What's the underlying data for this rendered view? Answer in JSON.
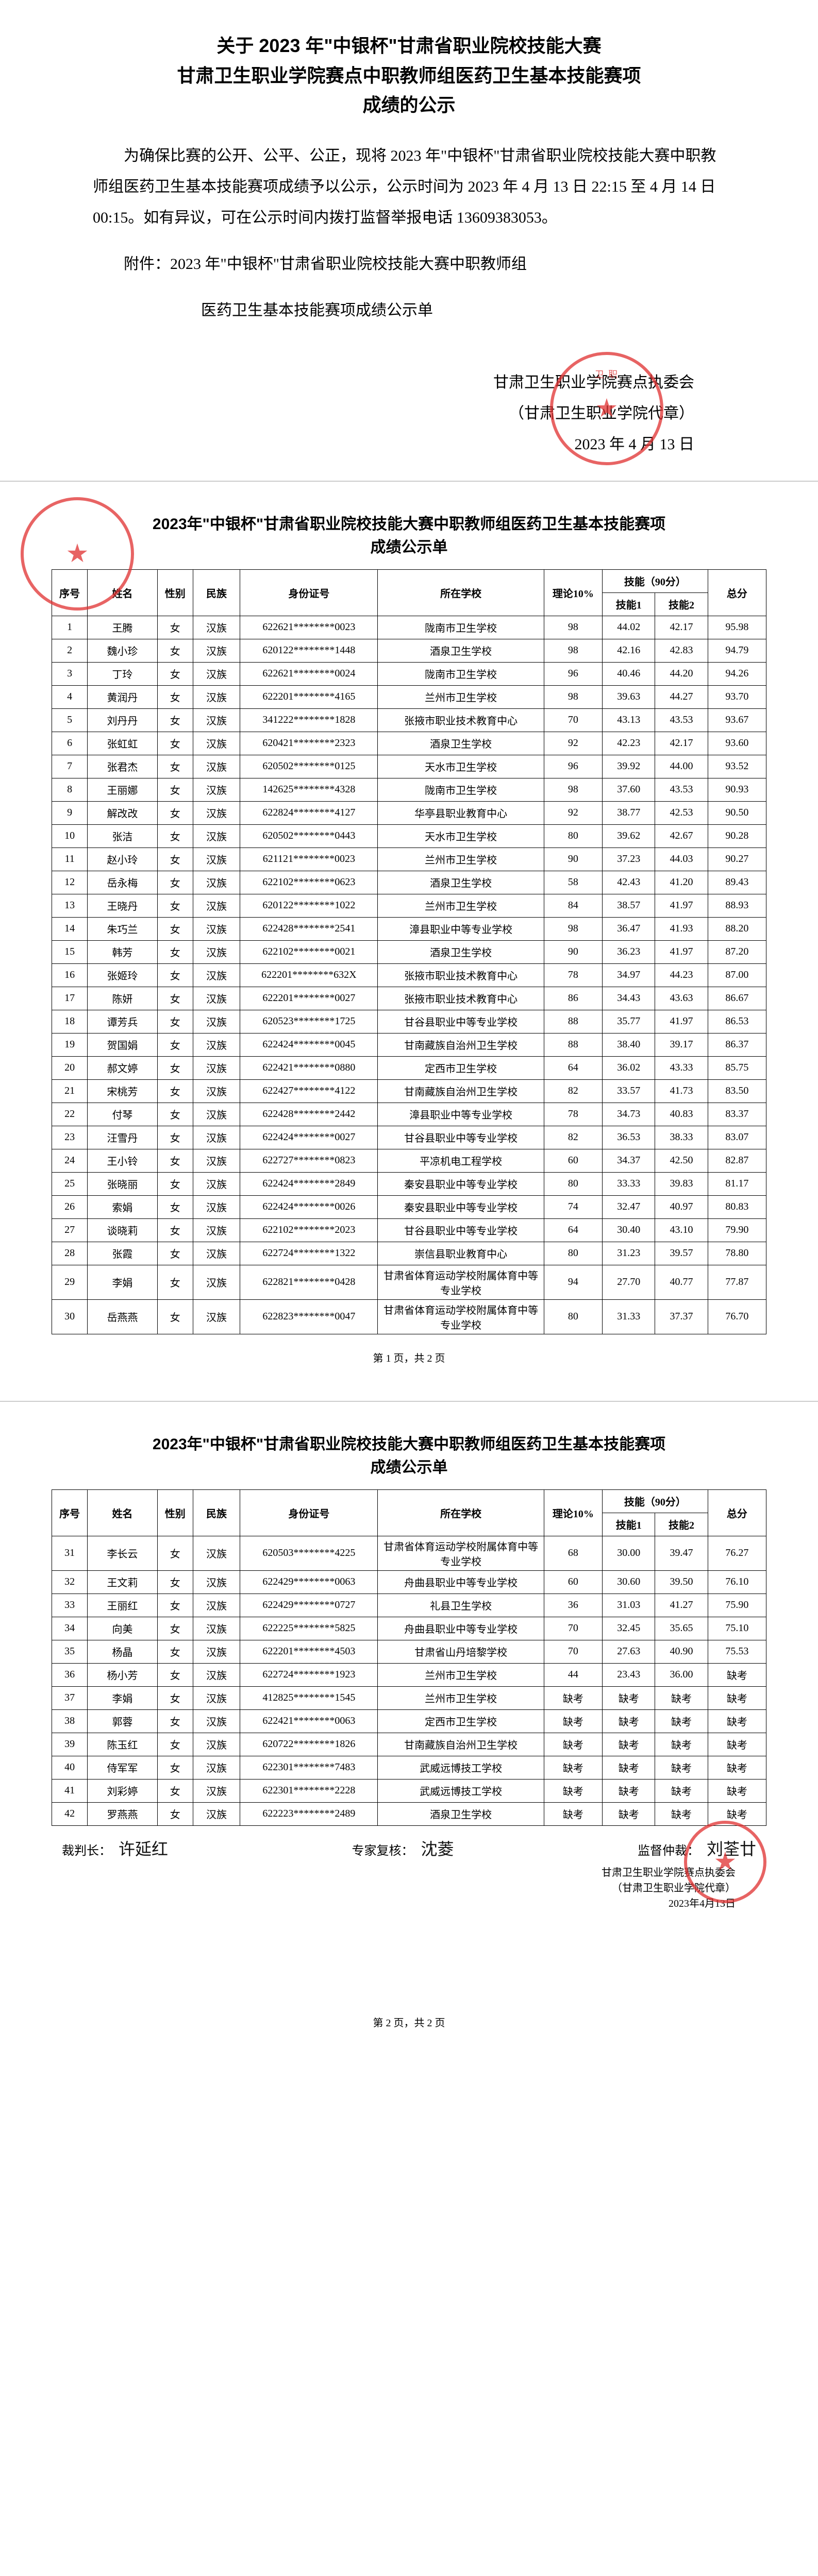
{
  "notice": {
    "title_line1": "关于 2023 年\"中银杯\"甘肃省职业院校技能大赛",
    "title_line2": "甘肃卫生职业学院赛点中职教师组医药卫生基本技能赛项",
    "title_line3": "成绩的公示",
    "para1": "为确保比赛的公开、公平、公正，现将 2023 年\"中银杯\"甘肃省职业院校技能大赛中职教师组医药卫生基本技能赛项成绩予以公示，公示时间为 2023 年 4 月 13 日 22:15 至 4 月 14 日 00:15。如有异议，可在公示时间内拨打监督举报电话 13609383053。",
    "attach_label": "附件：2023 年\"中银杯\"甘肃省职业院校技能大赛中职教师组",
    "attach_cont": "医药卫生基本技能赛项成绩公示单",
    "sig_org": "甘肃卫生职业学院赛点执委会",
    "sig_proxy": "（甘肃卫生职业学院代章）",
    "sig_date": "2023 年 4 月 13 日"
  },
  "table_meta": {
    "sub_title_line1": "2023年\"中银杯\"甘肃省职业院校技能大赛中职教师组医药卫生基本技能赛项",
    "sub_title_line2": "成绩公示单",
    "h_seq": "序号",
    "h_name": "姓名",
    "h_sex": "性别",
    "h_eth": "民族",
    "h_id": "身份证号",
    "h_school": "所在学校",
    "h_theory": "理论10%",
    "h_skill_group": "技能（90分）",
    "h_sk1": "技能1",
    "h_sk2": "技能2",
    "h_total": "总分",
    "page1_footer": "第 1 页，共 2 页",
    "page2_footer": "第 2 页，共 2 页",
    "sign_judge_label": "裁判长：",
    "sign_judge_val": "许延红",
    "sign_expert_label": "专家复核：",
    "sign_expert_val": "沈菱",
    "sign_super_label": "监督仲裁：",
    "sign_super_val": "刘荃廿",
    "stamp_org": "甘肃卫生职业学院赛点执委会",
    "stamp_proxy": "（甘肃卫生职业学院代章）",
    "stamp_date": "2023年4月13日"
  },
  "rows_p1": [
    {
      "seq": "1",
      "name": "王腾",
      "sex": "女",
      "eth": "汉族",
      "id": "622621********0023",
      "school": "陇南市卫生学校",
      "theory": "98",
      "sk1": "44.02",
      "sk2": "42.17",
      "total": "95.98"
    },
    {
      "seq": "2",
      "name": "魏小珍",
      "sex": "女",
      "eth": "汉族",
      "id": "620122********1448",
      "school": "酒泉卫生学校",
      "theory": "98",
      "sk1": "42.16",
      "sk2": "42.83",
      "total": "94.79"
    },
    {
      "seq": "3",
      "name": "丁玲",
      "sex": "女",
      "eth": "汉族",
      "id": "622621********0024",
      "school": "陇南市卫生学校",
      "theory": "96",
      "sk1": "40.46",
      "sk2": "44.20",
      "total": "94.26"
    },
    {
      "seq": "4",
      "name": "黄润丹",
      "sex": "女",
      "eth": "汉族",
      "id": "622201********4165",
      "school": "兰州市卫生学校",
      "theory": "98",
      "sk1": "39.63",
      "sk2": "44.27",
      "total": "93.70"
    },
    {
      "seq": "5",
      "name": "刘丹丹",
      "sex": "女",
      "eth": "汉族",
      "id": "341222********1828",
      "school": "张掖市职业技术教育中心",
      "theory": "70",
      "sk1": "43.13",
      "sk2": "43.53",
      "total": "93.67"
    },
    {
      "seq": "6",
      "name": "张虹虹",
      "sex": "女",
      "eth": "汉族",
      "id": "620421********2323",
      "school": "酒泉卫生学校",
      "theory": "92",
      "sk1": "42.23",
      "sk2": "42.17",
      "total": "93.60"
    },
    {
      "seq": "7",
      "name": "张君杰",
      "sex": "女",
      "eth": "汉族",
      "id": "620502********0125",
      "school": "天水市卫生学校",
      "theory": "96",
      "sk1": "39.92",
      "sk2": "44.00",
      "total": "93.52"
    },
    {
      "seq": "8",
      "name": "王丽娜",
      "sex": "女",
      "eth": "汉族",
      "id": "142625********4328",
      "school": "陇南市卫生学校",
      "theory": "98",
      "sk1": "37.60",
      "sk2": "43.53",
      "total": "90.93"
    },
    {
      "seq": "9",
      "name": "解改改",
      "sex": "女",
      "eth": "汉族",
      "id": "622824********4127",
      "school": "华亭县职业教育中心",
      "theory": "92",
      "sk1": "38.77",
      "sk2": "42.53",
      "total": "90.50"
    },
    {
      "seq": "10",
      "name": "张洁",
      "sex": "女",
      "eth": "汉族",
      "id": "620502********0443",
      "school": "天水市卫生学校",
      "theory": "80",
      "sk1": "39.62",
      "sk2": "42.67",
      "total": "90.28"
    },
    {
      "seq": "11",
      "name": "赵小玲",
      "sex": "女",
      "eth": "汉族",
      "id": "621121********0023",
      "school": "兰州市卫生学校",
      "theory": "90",
      "sk1": "37.23",
      "sk2": "44.03",
      "total": "90.27"
    },
    {
      "seq": "12",
      "name": "岳永梅",
      "sex": "女",
      "eth": "汉族",
      "id": "622102********0623",
      "school": "酒泉卫生学校",
      "theory": "58",
      "sk1": "42.43",
      "sk2": "41.20",
      "total": "89.43"
    },
    {
      "seq": "13",
      "name": "王晓丹",
      "sex": "女",
      "eth": "汉族",
      "id": "620122********1022",
      "school": "兰州市卫生学校",
      "theory": "84",
      "sk1": "38.57",
      "sk2": "41.97",
      "total": "88.93"
    },
    {
      "seq": "14",
      "name": "朱巧兰",
      "sex": "女",
      "eth": "汉族",
      "id": "622428********2541",
      "school": "漳县职业中等专业学校",
      "theory": "98",
      "sk1": "36.47",
      "sk2": "41.93",
      "total": "88.20"
    },
    {
      "seq": "15",
      "name": "韩芳",
      "sex": "女",
      "eth": "汉族",
      "id": "622102********0021",
      "school": "酒泉卫生学校",
      "theory": "90",
      "sk1": "36.23",
      "sk2": "41.97",
      "total": "87.20"
    },
    {
      "seq": "16",
      "name": "张姬玲",
      "sex": "女",
      "eth": "汉族",
      "id": "622201********632X",
      "school": "张掖市职业技术教育中心",
      "theory": "78",
      "sk1": "34.97",
      "sk2": "44.23",
      "total": "87.00"
    },
    {
      "seq": "17",
      "name": "陈妍",
      "sex": "女",
      "eth": "汉族",
      "id": "622201********0027",
      "school": "张掖市职业技术教育中心",
      "theory": "86",
      "sk1": "34.43",
      "sk2": "43.63",
      "total": "86.67"
    },
    {
      "seq": "18",
      "name": "谭芳兵",
      "sex": "女",
      "eth": "汉族",
      "id": "620523********1725",
      "school": "甘谷县职业中等专业学校",
      "theory": "88",
      "sk1": "35.77",
      "sk2": "41.97",
      "total": "86.53"
    },
    {
      "seq": "19",
      "name": "贺国娟",
      "sex": "女",
      "eth": "汉族",
      "id": "622424********0045",
      "school": "甘南藏族自治州卫生学校",
      "theory": "88",
      "sk1": "38.40",
      "sk2": "39.17",
      "total": "86.37"
    },
    {
      "seq": "20",
      "name": "郝文婷",
      "sex": "女",
      "eth": "汉族",
      "id": "622421********0880",
      "school": "定西市卫生学校",
      "theory": "64",
      "sk1": "36.02",
      "sk2": "43.33",
      "total": "85.75"
    },
    {
      "seq": "21",
      "name": "宋桃芳",
      "sex": "女",
      "eth": "汉族",
      "id": "622427********4122",
      "school": "甘南藏族自治州卫生学校",
      "theory": "82",
      "sk1": "33.57",
      "sk2": "41.73",
      "total": "83.50"
    },
    {
      "seq": "22",
      "name": "付琴",
      "sex": "女",
      "eth": "汉族",
      "id": "622428********2442",
      "school": "漳县职业中等专业学校",
      "theory": "78",
      "sk1": "34.73",
      "sk2": "40.83",
      "total": "83.37"
    },
    {
      "seq": "23",
      "name": "汪雪丹",
      "sex": "女",
      "eth": "汉族",
      "id": "622424********0027",
      "school": "甘谷县职业中等专业学校",
      "theory": "82",
      "sk1": "36.53",
      "sk2": "38.33",
      "total": "83.07"
    },
    {
      "seq": "24",
      "name": "王小铃",
      "sex": "女",
      "eth": "汉族",
      "id": "622727********0823",
      "school": "平凉机电工程学校",
      "theory": "60",
      "sk1": "34.37",
      "sk2": "42.50",
      "total": "82.87"
    },
    {
      "seq": "25",
      "name": "张晓丽",
      "sex": "女",
      "eth": "汉族",
      "id": "622424********2849",
      "school": "秦安县职业中等专业学校",
      "theory": "80",
      "sk1": "33.33",
      "sk2": "39.83",
      "total": "81.17"
    },
    {
      "seq": "26",
      "name": "索娟",
      "sex": "女",
      "eth": "汉族",
      "id": "622424********0026",
      "school": "秦安县职业中等专业学校",
      "theory": "74",
      "sk1": "32.47",
      "sk2": "40.97",
      "total": "80.83"
    },
    {
      "seq": "27",
      "name": "谈晓莉",
      "sex": "女",
      "eth": "汉族",
      "id": "622102********2023",
      "school": "甘谷县职业中等专业学校",
      "theory": "64",
      "sk1": "30.40",
      "sk2": "43.10",
      "total": "79.90"
    },
    {
      "seq": "28",
      "name": "张霞",
      "sex": "女",
      "eth": "汉族",
      "id": "622724********1322",
      "school": "崇信县职业教育中心",
      "theory": "80",
      "sk1": "31.23",
      "sk2": "39.57",
      "total": "78.80"
    },
    {
      "seq": "29",
      "name": "李娟",
      "sex": "女",
      "eth": "汉族",
      "id": "622821********0428",
      "school": "甘肃省体育运动学校附属体育中等专业学校",
      "theory": "94",
      "sk1": "27.70",
      "sk2": "40.77",
      "total": "77.87"
    },
    {
      "seq": "30",
      "name": "岳燕燕",
      "sex": "女",
      "eth": "汉族",
      "id": "622823********0047",
      "school": "甘肃省体育运动学校附属体育中等专业学校",
      "theory": "80",
      "sk1": "31.33",
      "sk2": "37.37",
      "total": "76.70"
    }
  ],
  "rows_p2": [
    {
      "seq": "31",
      "name": "李长云",
      "sex": "女",
      "eth": "汉族",
      "id": "620503********4225",
      "school": "甘肃省体育运动学校附属体育中等专业学校",
      "theory": "68",
      "sk1": "30.00",
      "sk2": "39.47",
      "total": "76.27"
    },
    {
      "seq": "32",
      "name": "王文莉",
      "sex": "女",
      "eth": "汉族",
      "id": "622429********0063",
      "school": "舟曲县职业中等专业学校",
      "theory": "60",
      "sk1": "30.60",
      "sk2": "39.50",
      "total": "76.10"
    },
    {
      "seq": "33",
      "name": "王丽红",
      "sex": "女",
      "eth": "汉族",
      "id": "622429********0727",
      "school": "礼县卫生学校",
      "theory": "36",
      "sk1": "31.03",
      "sk2": "41.27",
      "total": "75.90"
    },
    {
      "seq": "34",
      "name": "向美",
      "sex": "女",
      "eth": "汉族",
      "id": "622225********5825",
      "school": "舟曲县职业中等专业学校",
      "theory": "70",
      "sk1": "32.45",
      "sk2": "35.65",
      "total": "75.10"
    },
    {
      "seq": "35",
      "name": "杨晶",
      "sex": "女",
      "eth": "汉族",
      "id": "622201********4503",
      "school": "甘肃省山丹培黎学校",
      "theory": "70",
      "sk1": "27.63",
      "sk2": "40.90",
      "total": "75.53"
    },
    {
      "seq": "36",
      "name": "杨小芳",
      "sex": "女",
      "eth": "汉族",
      "id": "622724********1923",
      "school": "兰州市卫生学校",
      "theory": "44",
      "sk1": "23.43",
      "sk2": "36.00",
      "total": "缺考"
    },
    {
      "seq": "37",
      "name": "李娟",
      "sex": "女",
      "eth": "汉族",
      "id": "412825********1545",
      "school": "兰州市卫生学校",
      "theory": "缺考",
      "sk1": "缺考",
      "sk2": "缺考",
      "total": "缺考"
    },
    {
      "seq": "38",
      "name": "郭蓉",
      "sex": "女",
      "eth": "汉族",
      "id": "622421********0063",
      "school": "定西市卫生学校",
      "theory": "缺考",
      "sk1": "缺考",
      "sk2": "缺考",
      "total": "缺考"
    },
    {
      "seq": "39",
      "name": "陈玉红",
      "sex": "女",
      "eth": "汉族",
      "id": "620722********1826",
      "school": "甘南藏族自治州卫生学校",
      "theory": "缺考",
      "sk1": "缺考",
      "sk2": "缺考",
      "total": "缺考"
    },
    {
      "seq": "40",
      "name": "侍军军",
      "sex": "女",
      "eth": "汉族",
      "id": "622301********7483",
      "school": "武威远博技工学校",
      "theory": "缺考",
      "sk1": "缺考",
      "sk2": "缺考",
      "total": "缺考"
    },
    {
      "seq": "41",
      "name": "刘彩婷",
      "sex": "女",
      "eth": "汉族",
      "id": "622301********2228",
      "school": "武威远博技工学校",
      "theory": "缺考",
      "sk1": "缺考",
      "sk2": "缺考",
      "total": "缺考"
    },
    {
      "seq": "42",
      "name": "罗燕燕",
      "sex": "女",
      "eth": "汉族",
      "id": "622223********2489",
      "school": "酒泉卫生学校",
      "theory": "缺考",
      "sk1": "缺考",
      "sk2": "缺考",
      "total": "缺考"
    }
  ]
}
